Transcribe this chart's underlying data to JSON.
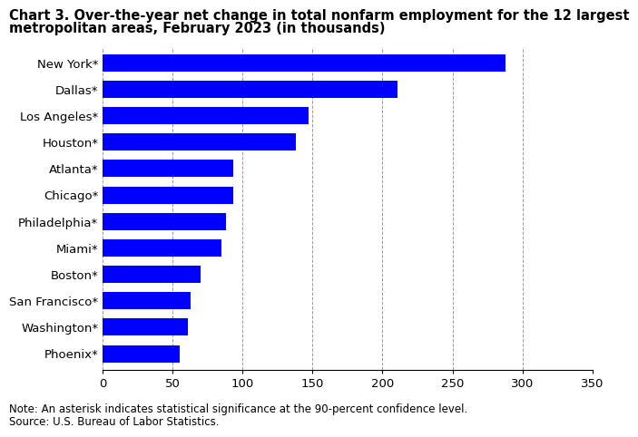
{
  "title_line1": "Chart 3. Over-the-year net change in total nonfarm employment for the 12 largest",
  "title_line2": "metropolitan areas, February 2023 (in thousands)",
  "categories": [
    "New York*",
    "Dallas*",
    "Los Angeles*",
    "Houston*",
    "Atlanta*",
    "Chicago*",
    "Philadelphia*",
    "Miami*",
    "Boston*",
    "San Francisco*",
    "Washington*",
    "Phoenix*"
  ],
  "values": [
    288,
    211,
    147,
    138,
    93,
    93,
    88,
    85,
    70,
    63,
    61,
    55
  ],
  "bar_color": "#0000FF",
  "xlim": [
    0,
    350
  ],
  "xticks": [
    0,
    50,
    100,
    150,
    200,
    250,
    300,
    350
  ],
  "note": "Note: An asterisk indicates statistical significance at the 90-percent confidence level.",
  "source": "Source: U.S. Bureau of Labor Statistics.",
  "title_fontsize": 10.5,
  "tick_fontsize": 9.5,
  "note_fontsize": 8.5,
  "bar_height": 0.65,
  "background_color": "#ffffff"
}
